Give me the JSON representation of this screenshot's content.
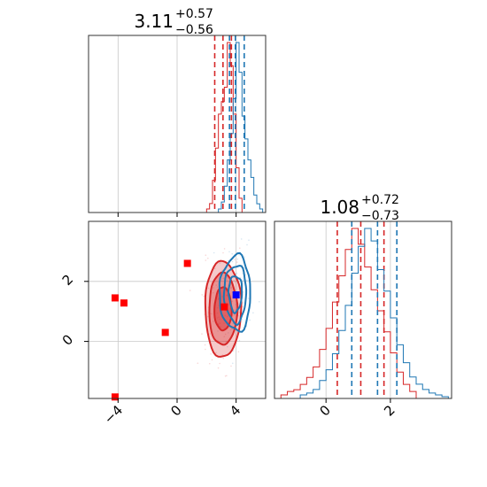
{
  "chart_data": {
    "type": "corner",
    "parameters": 2,
    "panels": [
      {
        "id": "marginal-p1",
        "type": "histogram-step",
        "title": {
          "value": "3.11",
          "plus": "+0.57",
          "minus": "−0.56"
        },
        "xlim": [
          -6.0,
          6.0
        ],
        "tick_values": [
          -4,
          0,
          4
        ],
        "grid": true,
        "series": [
          {
            "name": "",
            "color": "#d62728",
            "bin_edges": [
              2.0,
              2.2,
              2.4,
              2.6,
              2.8,
              3.0,
              3.2,
              3.4,
              3.6,
              3.8,
              4.0,
              4.2,
              4.4
            ],
            "counts": [
              0.02,
              0.05,
              0.18,
              0.36,
              0.55,
              0.62,
              0.7,
              0.95,
              0.82,
              0.55,
              0.25,
              0.08
            ],
            "quantiles": [
              2.55,
              3.11,
              3.68
            ]
          },
          {
            "name": "",
            "color": "#1f77b4",
            "bin_edges": [
              2.8,
              3.0,
              3.2,
              3.4,
              3.6,
              3.8,
              4.0,
              4.2,
              4.4,
              4.6,
              4.8,
              5.0,
              5.2,
              5.4,
              5.6,
              5.8
            ],
            "counts": [
              0.02,
              0.06,
              0.15,
              0.3,
              0.45,
              0.65,
              0.97,
              0.8,
              0.55,
              0.42,
              0.3,
              0.2,
              0.1,
              0.05,
              0.02
            ],
            "quantiles": [
              3.55,
              3.95,
              4.55
            ]
          }
        ]
      },
      {
        "id": "marginal-p2",
        "type": "histogram-step",
        "title": {
          "value": "1.08",
          "plus": "+0.72",
          "minus": "−0.73"
        },
        "xlim": [
          -1.6,
          3.9
        ],
        "tick_values": [
          0,
          2
        ],
        "grid": true,
        "series": [
          {
            "name": "",
            "color": "#d62728",
            "bin_edges": [
              -1.6,
              -1.4,
              -1.2,
              -1.0,
              -0.8,
              -0.6,
              -0.4,
              -0.2,
              0.0,
              0.2,
              0.4,
              0.6,
              0.8,
              1.0,
              1.2,
              1.4,
              1.6,
              1.8,
              2.0,
              2.2,
              2.4,
              2.6,
              2.8,
              3.0
            ],
            "counts": [
              0.0,
              0.02,
              0.04,
              0.05,
              0.08,
              0.12,
              0.18,
              0.28,
              0.4,
              0.55,
              0.7,
              0.85,
              0.97,
              0.88,
              0.75,
              0.62,
              0.5,
              0.38,
              0.26,
              0.15,
              0.08,
              0.04,
              0.0
            ],
            "quantiles": [
              0.35,
              1.08,
              1.8
            ]
          },
          {
            "name": "",
            "color": "#1f77b4",
            "bin_edges": [
              -1.0,
              -0.8,
              -0.6,
              -0.4,
              -0.2,
              0.0,
              0.2,
              0.4,
              0.6,
              0.8,
              1.0,
              1.2,
              1.4,
              1.6,
              1.8,
              2.0,
              2.2,
              2.4,
              2.6,
              2.8,
              3.0,
              3.2,
              3.4,
              3.6,
              3.8
            ],
            "counts": [
              0.0,
              0.02,
              0.03,
              0.05,
              0.1,
              0.16,
              0.25,
              0.38,
              0.52,
              0.7,
              0.85,
              0.95,
              0.88,
              0.72,
              0.6,
              0.45,
              0.3,
              0.2,
              0.12,
              0.08,
              0.05,
              0.03,
              0.02,
              0.01
            ],
            "quantiles": [
              0.8,
              1.6,
              2.2
            ]
          }
        ]
      },
      {
        "id": "joint-p1-p2",
        "type": "contour",
        "xlim": [
          -6.0,
          6.0
        ],
        "ylim": [
          -1.9,
          4.0
        ],
        "x_tick_values": [
          -4,
          0,
          4
        ],
        "y_tick_values": [
          0,
          2
        ],
        "grid": true,
        "series": [
          {
            "name": "",
            "color": "#d62728",
            "center": [
              3.11,
              1.08
            ],
            "levels": [
              {
                "sx": 0.58,
                "sy": 0.72,
                "fill_opacity": 0.85
              },
              {
                "sx": 0.95,
                "sy": 1.2,
                "fill_opacity": 0.6
              },
              {
                "sx": 1.22,
                "sy": 1.6,
                "fill_opacity": 0.45
              }
            ]
          },
          {
            "name": "",
            "color": "#1f77b4",
            "center": [
              3.95,
              1.6
            ],
            "levels": [
              {
                "sx": 0.45,
                "sy": 0.6
              },
              {
                "sx": 0.75,
                "sy": 0.95
              },
              {
                "sx": 1.05,
                "sy": 1.25
              }
            ]
          }
        ],
        "markers": [
          {
            "x": 0.7,
            "y": 2.6,
            "color": "#ff0000"
          },
          {
            "x": -4.2,
            "y": 1.45,
            "color": "#ff0000"
          },
          {
            "x": -3.6,
            "y": 1.28,
            "color": "#ff0000"
          },
          {
            "x": -0.8,
            "y": 0.3,
            "color": "#ff0000"
          },
          {
            "x": -4.2,
            "y": -1.85,
            "color": "#ff0000"
          },
          {
            "x": 3.2,
            "y": 1.15,
            "color": "#ff0000"
          },
          {
            "x": 4.0,
            "y": 1.55,
            "color": "#0000ff"
          }
        ]
      }
    ]
  }
}
